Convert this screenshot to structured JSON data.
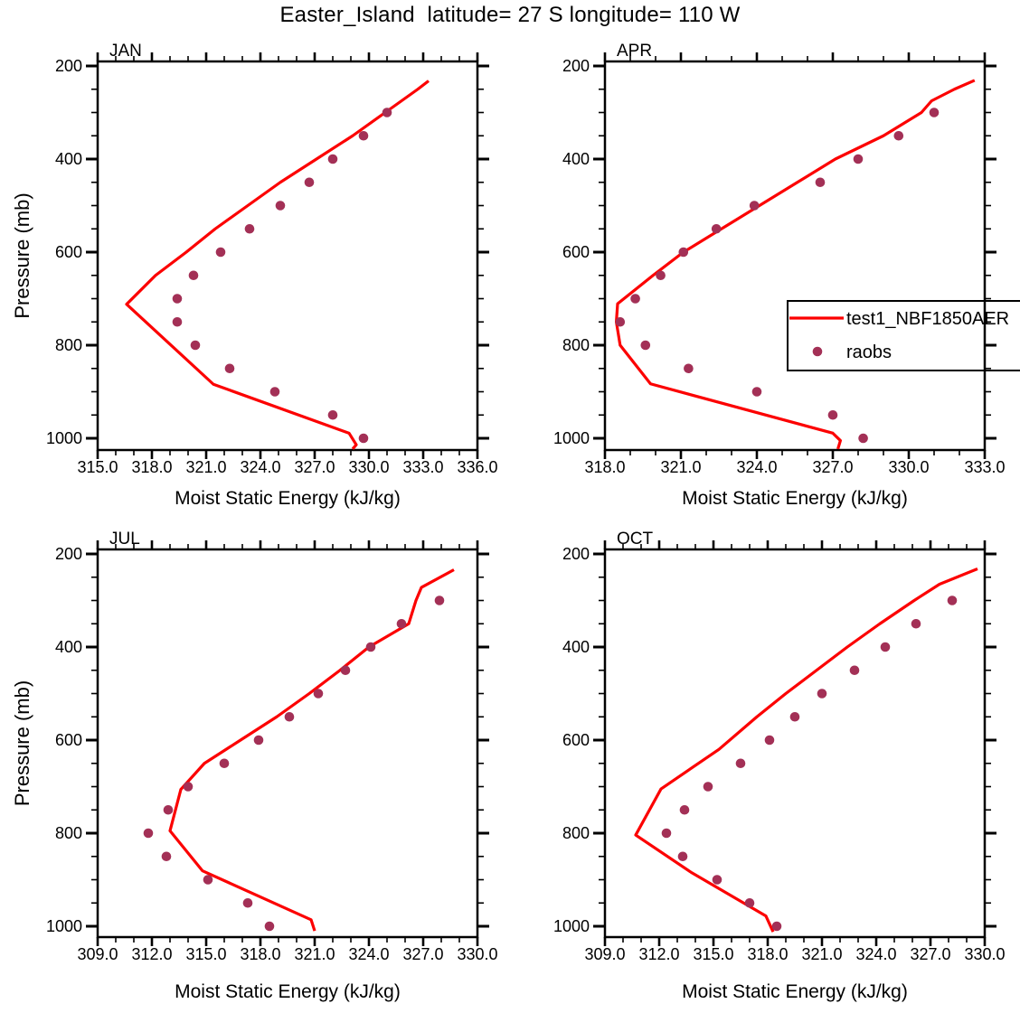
{
  "title": "Easter_Island  latitude= 27 S longitude= 110 W",
  "legend": {
    "model_label": "test1_NBF1850AER",
    "raobs_label": "raobs"
  },
  "colors": {
    "model_line": "#FC0000",
    "raobs_dot": "#A33056",
    "frame": "#000000"
  },
  "axis": {
    "x_label": "Moist Static Energy (kJ/kg)",
    "y_label": "Pressure (mb)",
    "y_ticks_major": [
      200,
      400,
      600,
      800,
      1000
    ],
    "y_minor_step": 50,
    "x_major_step": 3,
    "x_minor_step": 1,
    "y_frame_range": [
      190,
      1025
    ]
  },
  "chart_data": [
    {
      "type": "line",
      "label": "JAN",
      "x_min": 315.0,
      "x_max": 336.0,
      "x_ticks": [
        315.0,
        318.0,
        321.0,
        324.0,
        327.0,
        330.0,
        333.0,
        336.0
      ],
      "xlabel": "Moist Static Energy (kJ/kg)",
      "ylabel": "Pressure (mb)",
      "series": [
        {
          "name": "test1_NBF1850AER",
          "style": "line",
          "points": [
            [
              1023,
              329.1
            ],
            [
              1014,
              329.3
            ],
            [
              989,
              328.9
            ],
            [
              884,
              321.4
            ],
            [
              712,
              316.6
            ],
            [
              650,
              318.2
            ],
            [
              600,
              319.9
            ],
            [
              550,
              321.5
            ],
            [
              500,
              323.3
            ],
            [
              450,
              325.1
            ],
            [
              400,
              327.1
            ],
            [
              350,
              329.1
            ],
            [
              300,
              330.9
            ],
            [
              250,
              332.7
            ],
            [
              232,
              333.3
            ]
          ]
        },
        {
          "name": "raobs",
          "style": "scatter",
          "points": [
            [
              1000,
              329.7
            ],
            [
              950,
              328.0
            ],
            [
              900,
              324.8
            ],
            [
              850,
              322.3
            ],
            [
              800,
              320.4
            ],
            [
              750,
              319.4
            ],
            [
              700,
              319.4
            ],
            [
              650,
              320.3
            ],
            [
              600,
              321.8
            ],
            [
              550,
              323.4
            ],
            [
              500,
              325.1
            ],
            [
              450,
              326.7
            ],
            [
              400,
              328.0
            ],
            [
              350,
              329.7
            ],
            [
              300,
              331.0
            ]
          ]
        }
      ]
    },
    {
      "type": "line",
      "label": "APR",
      "x_min": 318.0,
      "x_max": 333.0,
      "x_ticks": [
        318.0,
        321.0,
        324.0,
        327.0,
        330.0,
        333.0
      ],
      "xlabel": "Moist Static Energy (kJ/kg)",
      "ylabel": "Pressure (mb)",
      "series": [
        {
          "name": "test1_NBF1850AER",
          "style": "line",
          "points": [
            [
              1023,
              327.2
            ],
            [
              1005,
              327.3
            ],
            [
              989,
              327.0
            ],
            [
              883,
              319.8
            ],
            [
              800,
              318.6
            ],
            [
              750,
              318.45
            ],
            [
              711,
              318.5
            ],
            [
              650,
              319.9
            ],
            [
              600,
              321.1
            ],
            [
              550,
              322.6
            ],
            [
              500,
              324.1
            ],
            [
              450,
              325.6
            ],
            [
              400,
              327.1
            ],
            [
              350,
              329.0
            ],
            [
              300,
              330.5
            ],
            [
              275,
              330.9
            ],
            [
              250,
              331.8
            ],
            [
              231,
              332.6
            ]
          ]
        },
        {
          "name": "raobs",
          "style": "scatter",
          "points": [
            [
              1000,
              328.2
            ],
            [
              950,
              327.0
            ],
            [
              900,
              324.0
            ],
            [
              850,
              321.3
            ],
            [
              800,
              319.6
            ],
            [
              750,
              318.6
            ],
            [
              700,
              319.2
            ],
            [
              650,
              320.2
            ],
            [
              600,
              321.1
            ],
            [
              550,
              322.4
            ],
            [
              500,
              323.9
            ],
            [
              450,
              326.5
            ],
            [
              400,
              328.0
            ],
            [
              350,
              329.6
            ],
            [
              300,
              331.0
            ]
          ]
        }
      ]
    },
    {
      "type": "line",
      "label": "JUL",
      "x_min": 309.0,
      "x_max": 330.0,
      "x_ticks": [
        309.0,
        312.0,
        315.0,
        318.0,
        321.0,
        324.0,
        327.0,
        330.0
      ],
      "xlabel": "Moist Static Energy (kJ/kg)",
      "ylabel": "Pressure (mb)",
      "series": [
        {
          "name": "test1_NBF1850AER",
          "style": "line",
          "points": [
            [
              1010,
              321.0
            ],
            [
              986,
              320.8
            ],
            [
              881,
              314.8
            ],
            [
              795,
              313.0
            ],
            [
              706,
              313.6
            ],
            [
              650,
              314.9
            ],
            [
              600,
              316.9
            ],
            [
              550,
              318.9
            ],
            [
              500,
              320.7
            ],
            [
              450,
              322.4
            ],
            [
              400,
              324.0
            ],
            [
              350,
              326.2
            ],
            [
              300,
              326.6
            ],
            [
              272,
              326.9
            ],
            [
              234,
              328.7
            ]
          ]
        },
        {
          "name": "raobs",
          "style": "scatter",
          "points": [
            [
              1000,
              318.5
            ],
            [
              950,
              317.3
            ],
            [
              900,
              315.1
            ],
            [
              850,
              312.8
            ],
            [
              800,
              311.8
            ],
            [
              750,
              312.9
            ],
            [
              700,
              314.0
            ],
            [
              650,
              316.0
            ],
            [
              600,
              317.9
            ],
            [
              550,
              319.6
            ],
            [
              500,
              321.2
            ],
            [
              450,
              322.7
            ],
            [
              400,
              324.1
            ],
            [
              350,
              325.8
            ],
            [
              300,
              327.9
            ]
          ]
        }
      ]
    },
    {
      "type": "line",
      "label": "OCT",
      "x_min": 309.0,
      "x_max": 330.0,
      "x_ticks": [
        309.0,
        312.0,
        315.0,
        318.0,
        321.0,
        324.0,
        327.0,
        330.0
      ],
      "xlabel": "Moist Static Energy (kJ/kg)",
      "ylabel": "Pressure (mb)",
      "series": [
        {
          "name": "test1_NBF1850AER",
          "style": "line",
          "points": [
            [
              1012,
              318.3
            ],
            [
              978,
              317.9
            ],
            [
              885,
              313.8
            ],
            [
              804,
              310.7
            ],
            [
              705,
              312.1
            ],
            [
              620,
              315.3
            ],
            [
              550,
              317.4
            ],
            [
              500,
              319.0
            ],
            [
              450,
              320.7
            ],
            [
              400,
              322.4
            ],
            [
              350,
              324.2
            ],
            [
              300,
              326.1
            ],
            [
              265,
              327.5
            ],
            [
              232,
              329.6
            ]
          ]
        },
        {
          "name": "raobs",
          "style": "scatter",
          "points": [
            [
              1000,
              318.5
            ],
            [
              950,
              317.0
            ],
            [
              900,
              315.2
            ],
            [
              850,
              313.3
            ],
            [
              800,
              312.4
            ],
            [
              750,
              313.4
            ],
            [
              700,
              314.7
            ],
            [
              650,
              316.5
            ],
            [
              600,
              318.1
            ],
            [
              550,
              319.5
            ],
            [
              500,
              321.0
            ],
            [
              450,
              322.8
            ],
            [
              400,
              324.5
            ],
            [
              350,
              326.2
            ],
            [
              300,
              328.2
            ]
          ]
        }
      ]
    }
  ]
}
